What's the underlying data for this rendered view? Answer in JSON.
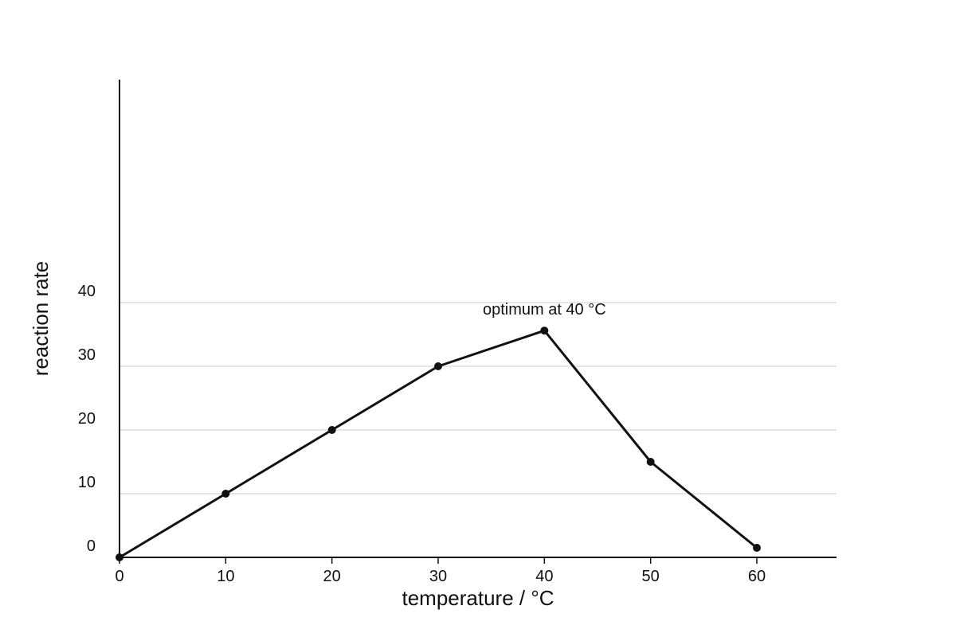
{
  "chart_data": {
    "type": "line",
    "title": "",
    "xlabel": "temperature / °C",
    "ylabel": "reaction rate",
    "x_ticks": [
      "0",
      "10",
      "20",
      "30",
      "40",
      "50",
      "60"
    ],
    "y_ticks": [
      "0",
      "10",
      "20",
      "30",
      "40"
    ],
    "xlim": [
      0,
      67.5
    ],
    "ylim": [
      0,
      75
    ],
    "grid": "horizontal",
    "series": [
      {
        "x": [
          0,
          10,
          20,
          30,
          40,
          50,
          60
        ],
        "y": [
          0,
          10,
          20,
          30,
          35.6,
          15,
          1.5
        ]
      }
    ],
    "annotations": [
      {
        "text": "optimum at 40 °C",
        "x": 40,
        "y": 35.6
      }
    ],
    "colors": {
      "line": "#111111",
      "grid": "#dddddd",
      "axis": "#111111"
    }
  }
}
